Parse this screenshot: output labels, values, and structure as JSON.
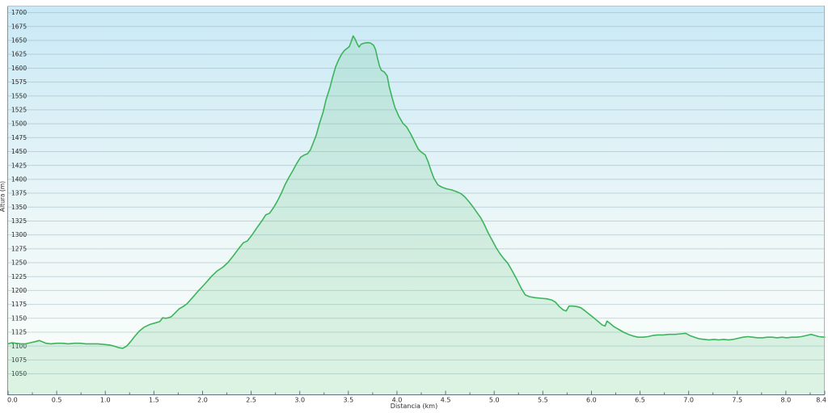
{
  "chart_data": {
    "type": "area",
    "title": "",
    "xlabel": "Distancia  (km)",
    "ylabel": "Altura (m)",
    "xlim": [
      0,
      8.4
    ],
    "ylim": [
      1013,
      1711
    ],
    "x_major_ticks": [
      0.0,
      0.5,
      1.0,
      1.5,
      2.0,
      2.5,
      3.0,
      3.5,
      4.0,
      4.5,
      5.0,
      5.5,
      6.0,
      6.5,
      7.0,
      7.5,
      8.0,
      8.4
    ],
    "x_minor_tick_start": 0.25,
    "x_minor_tick_step": 0.5,
    "y_ticks": [
      1050,
      1075,
      1100,
      1125,
      1150,
      1175,
      1200,
      1225,
      1250,
      1275,
      1300,
      1325,
      1350,
      1375,
      1400,
      1425,
      1450,
      1475,
      1500,
      1525,
      1550,
      1575,
      1600,
      1625,
      1650,
      1675,
      1700
    ],
    "grid": "horizontal",
    "legend": "none",
    "colors": {
      "line": "#3cb45c",
      "area_fill": "rgba(110,200,140,0.22)",
      "bg_top": "#c9e9f6",
      "bg_mid": "#edf7f7",
      "bg_bottom": "#fcfffc",
      "gridline": "rgba(130,162,176,0.40)",
      "border_left": "#7f95a6",
      "border_top": "#b7c6cf",
      "border_right": "#9fb2bd",
      "border_bottom": "#5f7180",
      "tick": "#5f7180",
      "label_text": "#2b2b2b"
    },
    "profile": [
      [
        0.0,
        1104
      ],
      [
        0.04,
        1106
      ],
      [
        0.08,
        1105
      ],
      [
        0.13,
        1104
      ],
      [
        0.18,
        1104
      ],
      [
        0.23,
        1106
      ],
      [
        0.28,
        1108
      ],
      [
        0.32,
        1110
      ],
      [
        0.35,
        1108
      ],
      [
        0.39,
        1105
      ],
      [
        0.44,
        1104
      ],
      [
        0.5,
        1105
      ],
      [
        0.56,
        1105
      ],
      [
        0.62,
        1104
      ],
      [
        0.68,
        1105
      ],
      [
        0.74,
        1105
      ],
      [
        0.8,
        1104
      ],
      [
        0.86,
        1104
      ],
      [
        0.92,
        1104
      ],
      [
        0.98,
        1103
      ],
      [
        1.04,
        1102
      ],
      [
        1.09,
        1100
      ],
      [
        1.14,
        1097
      ],
      [
        1.18,
        1096
      ],
      [
        1.22,
        1100
      ],
      [
        1.26,
        1108
      ],
      [
        1.3,
        1117
      ],
      [
        1.35,
        1127
      ],
      [
        1.4,
        1134
      ],
      [
        1.46,
        1139
      ],
      [
        1.52,
        1142
      ],
      [
        1.56,
        1144
      ],
      [
        1.59,
        1151
      ],
      [
        1.62,
        1150
      ],
      [
        1.65,
        1151
      ],
      [
        1.68,
        1153
      ],
      [
        1.72,
        1160
      ],
      [
        1.76,
        1167
      ],
      [
        1.8,
        1171
      ],
      [
        1.84,
        1176
      ],
      [
        1.9,
        1188
      ],
      [
        1.96,
        1200
      ],
      [
        2.03,
        1213
      ],
      [
        2.09,
        1225
      ],
      [
        2.15,
        1235
      ],
      [
        2.21,
        1242
      ],
      [
        2.26,
        1250
      ],
      [
        2.31,
        1261
      ],
      [
        2.37,
        1275
      ],
      [
        2.42,
        1286
      ],
      [
        2.46,
        1289
      ],
      [
        2.51,
        1300
      ],
      [
        2.56,
        1313
      ],
      [
        2.61,
        1325
      ],
      [
        2.65,
        1336
      ],
      [
        2.69,
        1339
      ],
      [
        2.73,
        1349
      ],
      [
        2.77,
        1361
      ],
      [
        2.81,
        1375
      ],
      [
        2.85,
        1391
      ],
      [
        2.89,
        1404
      ],
      [
        2.93,
        1416
      ],
      [
        2.97,
        1429
      ],
      [
        3.01,
        1440
      ],
      [
        3.05,
        1444
      ],
      [
        3.08,
        1446
      ],
      [
        3.11,
        1453
      ],
      [
        3.14,
        1466
      ],
      [
        3.17,
        1480
      ],
      [
        3.2,
        1499
      ],
      [
        3.24,
        1521
      ],
      [
        3.27,
        1543
      ],
      [
        3.31,
        1565
      ],
      [
        3.34,
        1585
      ],
      [
        3.37,
        1603
      ],
      [
        3.4,
        1615
      ],
      [
        3.43,
        1625
      ],
      [
        3.46,
        1632
      ],
      [
        3.49,
        1636
      ],
      [
        3.51,
        1639
      ],
      [
        3.53,
        1648
      ],
      [
        3.55,
        1658
      ],
      [
        3.57,
        1652
      ],
      [
        3.59,
        1644
      ],
      [
        3.61,
        1638
      ],
      [
        3.63,
        1643
      ],
      [
        3.66,
        1645
      ],
      [
        3.7,
        1646
      ],
      [
        3.73,
        1645
      ],
      [
        3.76,
        1641
      ],
      [
        3.78,
        1633
      ],
      [
        3.8,
        1618
      ],
      [
        3.82,
        1604
      ],
      [
        3.84,
        1596
      ],
      [
        3.87,
        1593
      ],
      [
        3.9,
        1586
      ],
      [
        3.92,
        1567
      ],
      [
        3.95,
        1547
      ],
      [
        3.98,
        1529
      ],
      [
        4.02,
        1513
      ],
      [
        4.06,
        1501
      ],
      [
        4.1,
        1494
      ],
      [
        4.14,
        1482
      ],
      [
        4.18,
        1468
      ],
      [
        4.22,
        1454
      ],
      [
        4.25,
        1449
      ],
      [
        4.29,
        1444
      ],
      [
        4.32,
        1432
      ],
      [
        4.35,
        1416
      ],
      [
        4.38,
        1402
      ],
      [
        4.42,
        1390
      ],
      [
        4.46,
        1386
      ],
      [
        4.51,
        1383
      ],
      [
        4.56,
        1381
      ],
      [
        4.61,
        1378
      ],
      [
        4.66,
        1374
      ],
      [
        4.7,
        1368
      ],
      [
        4.74,
        1360
      ],
      [
        4.78,
        1351
      ],
      [
        4.82,
        1341
      ],
      [
        4.86,
        1331
      ],
      [
        4.9,
        1318
      ],
      [
        4.94,
        1303
      ],
      [
        4.98,
        1290
      ],
      [
        5.02,
        1277
      ],
      [
        5.06,
        1266
      ],
      [
        5.1,
        1257
      ],
      [
        5.14,
        1249
      ],
      [
        5.18,
        1237
      ],
      [
        5.23,
        1221
      ],
      [
        5.28,
        1203
      ],
      [
        5.32,
        1192
      ],
      [
        5.36,
        1189
      ],
      [
        5.42,
        1187
      ],
      [
        5.48,
        1186
      ],
      [
        5.54,
        1185
      ],
      [
        5.59,
        1183
      ],
      [
        5.63,
        1179
      ],
      [
        5.67,
        1171
      ],
      [
        5.71,
        1165
      ],
      [
        5.74,
        1163
      ],
      [
        5.77,
        1172
      ],
      [
        5.81,
        1172
      ],
      [
        5.85,
        1171
      ],
      [
        5.89,
        1169
      ],
      [
        5.93,
        1164
      ],
      [
        5.98,
        1157
      ],
      [
        6.03,
        1150
      ],
      [
        6.07,
        1144
      ],
      [
        6.11,
        1138
      ],
      [
        6.14,
        1136
      ],
      [
        6.16,
        1145
      ],
      [
        6.19,
        1141
      ],
      [
        6.23,
        1135
      ],
      [
        6.28,
        1130
      ],
      [
        6.33,
        1125
      ],
      [
        6.38,
        1121
      ],
      [
        6.43,
        1118
      ],
      [
        6.48,
        1116
      ],
      [
        6.53,
        1116
      ],
      [
        6.58,
        1117
      ],
      [
        6.63,
        1119
      ],
      [
        6.68,
        1120
      ],
      [
        6.74,
        1120
      ],
      [
        6.8,
        1121
      ],
      [
        6.86,
        1121
      ],
      [
        6.92,
        1122
      ],
      [
        6.97,
        1123
      ],
      [
        7.01,
        1119
      ],
      [
        7.06,
        1116
      ],
      [
        7.11,
        1113
      ],
      [
        7.16,
        1112
      ],
      [
        7.21,
        1111
      ],
      [
        7.26,
        1112
      ],
      [
        7.31,
        1111
      ],
      [
        7.36,
        1112
      ],
      [
        7.41,
        1111
      ],
      [
        7.46,
        1112
      ],
      [
        7.51,
        1114
      ],
      [
        7.56,
        1116
      ],
      [
        7.61,
        1117
      ],
      [
        7.66,
        1116
      ],
      [
        7.71,
        1115
      ],
      [
        7.76,
        1115
      ],
      [
        7.81,
        1116
      ],
      [
        7.86,
        1116
      ],
      [
        7.91,
        1115
      ],
      [
        7.96,
        1116
      ],
      [
        8.01,
        1115
      ],
      [
        8.06,
        1116
      ],
      [
        8.11,
        1116
      ],
      [
        8.16,
        1117
      ],
      [
        8.21,
        1119
      ],
      [
        8.26,
        1121
      ],
      [
        8.3,
        1119
      ],
      [
        8.34,
        1117
      ],
      [
        8.4,
        1116
      ]
    ]
  }
}
